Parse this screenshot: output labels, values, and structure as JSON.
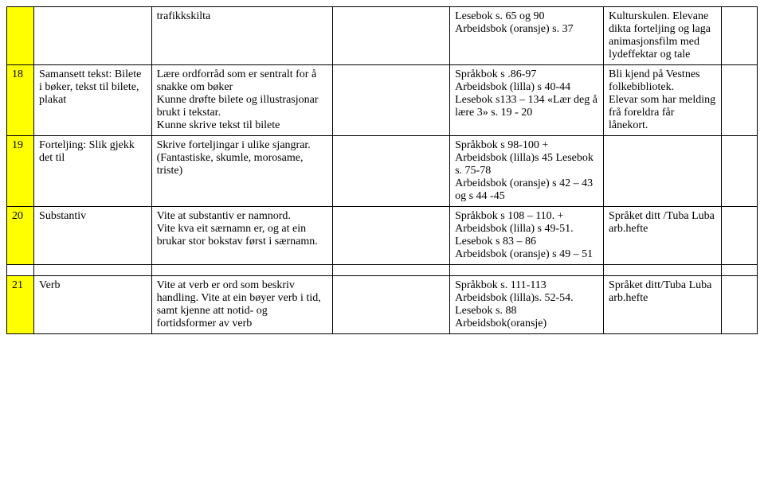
{
  "rows": [
    {
      "num": "",
      "a": "",
      "b": "trafikkskilta",
      "c": "",
      "d": "Lesebok s. 65 og 90\nArbeidsbok (oransje) s. 37",
      "e": "Kulturskulen. Elevane dikta forteljing og laga animasjonsfilm med lydeffektar og tale",
      "f": ""
    },
    {
      "num": "18",
      "a": "Samansett tekst: Bilete i bøker, tekst til bilete, plakat",
      "b": "Lære ordforråd som er sentralt for å snakke om bøker\nKunne drøfte bilete og illustrasjonar brukt i tekstar.\nKunne skrive tekst til bilete",
      "c": "",
      "d": "Språkbok s .86-97\nArbeidsbok (lilla) s 40-44\nLesebok s133 – 134 «Lær deg å lære 3» s. 19 - 20",
      "e": "Bli kjend på Vestnes folkebibliotek.\nElevar som har melding frå foreldra får lånekort.",
      "f": ""
    },
    {
      "num": "19",
      "a": "Forteljing: Slik gjekk det til",
      "b": "Skrive forteljingar i ulike sjangrar. (Fantastiske, skumle, morosame, triste)",
      "c": "",
      "d": "Språkbok s 98-100 + Arbeidsbok (lilla)s 45 Lesebok s. 75-78\nArbeidsbok (oransje) s 42 – 43 og s 44 -45",
      "e": "",
      "f": ""
    },
    {
      "num": "20",
      "a": "Substantiv",
      "b": "Vite at substantiv er namnord.\nVite kva eit særnamn er, og at ein brukar stor bokstav først i særnamn.",
      "c": "",
      "d": "Språkbok s 108 – 110. + Arbeidsbok (lilla) s 49-51.\nLesebok s 83 – 86\n Arbeidsbok (oransje) s 49 – 51",
      "e": "Språket ditt /Tuba Luba arb.hefte",
      "f": ""
    },
    {
      "num": "21",
      "a": "Verb",
      "b": "Vite at verb er ord som beskriv handling. Vite at ein bøyer verb i tid, samt kjenne att notid- og fortidsformer av verb",
      "c": "",
      "d": "Språkbok s. 111-113\nArbeidsbok (lilla)s. 52-54.\nLesebok s. 88 Arbeidsbok(oransje)",
      "e": "Språket ditt/Tuba Luba arb.hefte",
      "f": ""
    }
  ],
  "spacerAfter": 3
}
